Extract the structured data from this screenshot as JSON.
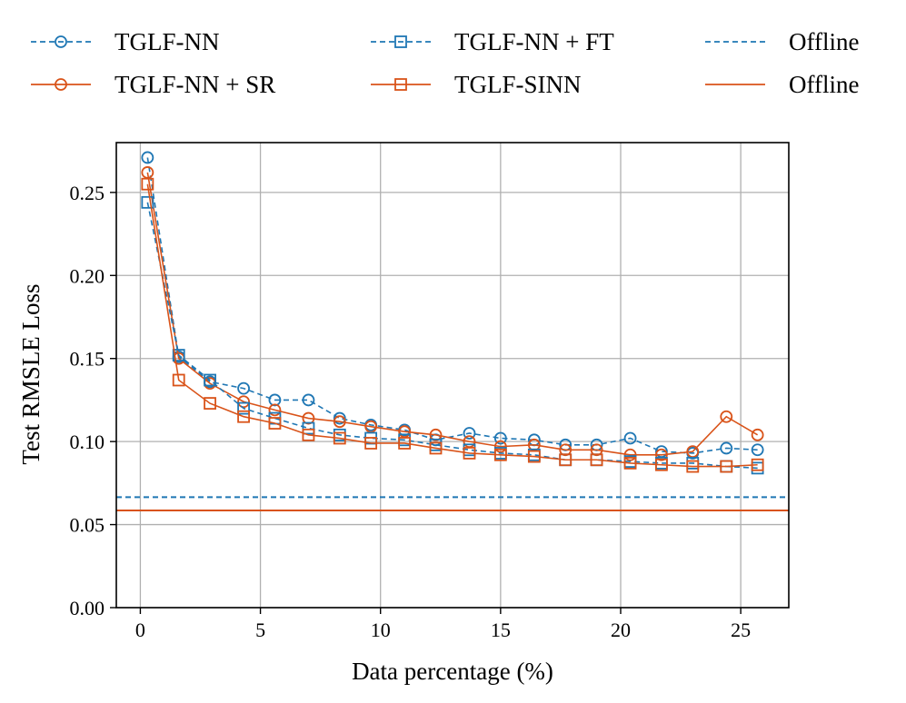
{
  "chart_data": {
    "type": "line",
    "title": "",
    "xlabel": "Data percentage (%)",
    "ylabel": "Test RMSLE Loss",
    "xlim": [
      -1,
      27
    ],
    "ylim": [
      0,
      0.28
    ],
    "xticks": [
      0,
      5,
      10,
      15,
      20,
      25
    ],
    "xtick_labels": [
      "0",
      "5",
      "10",
      "15",
      "20",
      "25"
    ],
    "yticks": [
      0,
      0.05,
      0.1,
      0.15,
      0.2,
      0.25
    ],
    "ytick_labels": [
      "0.00",
      "0.05",
      "0.10",
      "0.15",
      "0.20",
      "0.25"
    ],
    "grid": true,
    "legend_position": "top",
    "x": [
      0.3,
      1.6,
      2.9,
      4.3,
      5.6,
      7.0,
      8.3,
      9.6,
      11.0,
      12.3,
      13.7,
      15.0,
      16.4,
      17.7,
      19.0,
      20.4,
      21.7,
      23.0,
      24.4,
      25.7
    ],
    "series": [
      {
        "name": "TGLF-NN",
        "color": "#1f77b4",
        "linestyle": "dashed",
        "marker": "circle",
        "values": [
          0.271,
          0.151,
          0.136,
          0.132,
          0.125,
          0.125,
          0.114,
          0.11,
          0.107,
          0.101,
          0.105,
          0.102,
          0.101,
          0.098,
          0.098,
          0.102,
          0.094,
          0.093,
          0.096,
          0.095
        ]
      },
      {
        "name": "TGLF-NN + SR",
        "color": "#d95319",
        "linestyle": "solid",
        "marker": "circle",
        "values": [
          0.262,
          0.15,
          0.135,
          0.124,
          0.119,
          0.114,
          0.112,
          0.109,
          0.106,
          0.104,
          0.1,
          0.097,
          0.098,
          0.095,
          0.095,
          0.092,
          0.092,
          0.094,
          0.115,
          0.104
        ]
      },
      {
        "name": "TGLF-NN + FT",
        "color": "#1f77b4",
        "linestyle": "dashed",
        "marker": "square",
        "values": [
          0.244,
          0.152,
          0.137,
          0.12,
          0.114,
          0.108,
          0.104,
          0.102,
          0.101,
          0.098,
          0.095,
          0.093,
          0.092,
          0.089,
          0.089,
          0.088,
          0.087,
          0.087,
          0.085,
          0.084
        ]
      },
      {
        "name": "TGLF-SINN",
        "color": "#d95319",
        "linestyle": "solid",
        "marker": "square",
        "values": [
          0.255,
          0.137,
          0.123,
          0.115,
          0.111,
          0.104,
          0.102,
          0.099,
          0.099,
          0.096,
          0.093,
          0.092,
          0.091,
          0.089,
          0.089,
          0.087,
          0.086,
          0.085,
          0.085,
          0.086
        ]
      }
    ],
    "reference_lines": [
      {
        "name": "Offline",
        "color": "#1f77b4",
        "linestyle": "dashed",
        "y": 0.0665
      },
      {
        "name": "Offline",
        "color": "#d95319",
        "linestyle": "solid",
        "y": 0.0585
      }
    ]
  }
}
